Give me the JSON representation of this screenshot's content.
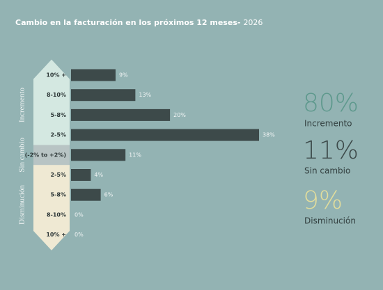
{
  "chart_data": {
    "type": "bar",
    "title": "Cambio en la facturación en los próximos 12 meses-",
    "subtitle": "2026",
    "bar_color": "#3d4a4a",
    "groups": [
      {
        "name": "Incremento",
        "band_color": "#d4e8e1",
        "share": 80,
        "share_label": "80%",
        "share_color": "#5e998d",
        "categories": [
          "10% +",
          "8-10%",
          "5-8%",
          "2-5%"
        ],
        "values": [
          9,
          13,
          20,
          38
        ],
        "value_labels": [
          "9%",
          "13%",
          "20%",
          "38%"
        ]
      },
      {
        "name": "Sin cambio",
        "band_color": "#b8c4c4",
        "share": 11,
        "share_label": "11%",
        "share_color": "#3d4a4a",
        "categories": [
          "(-2% to +2%)"
        ],
        "values": [
          11
        ],
        "value_labels": [
          "11%"
        ]
      },
      {
        "name": "Disminución",
        "band_color": "#efe9d3",
        "share": 9,
        "share_label": "9%",
        "share_color": "#e2dd9c",
        "categories": [
          "2-5%",
          "5-8%",
          "8-10%",
          "10% +"
        ],
        "values": [
          4,
          6,
          0,
          0
        ],
        "value_labels": [
          "4%",
          "6%",
          "0%",
          "0%"
        ]
      }
    ]
  }
}
